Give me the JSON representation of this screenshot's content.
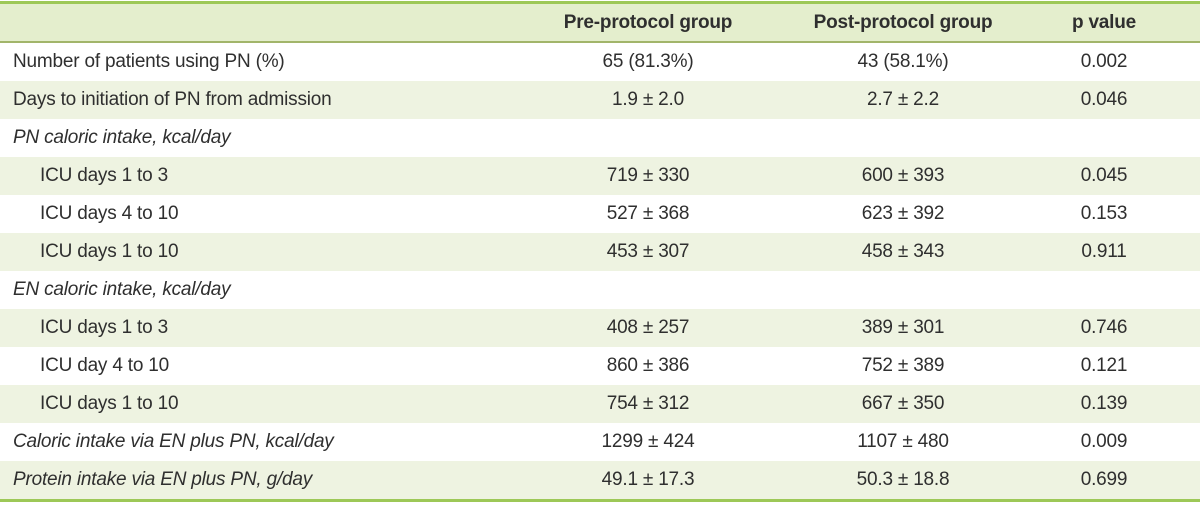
{
  "table": {
    "columns": {
      "row_label": "",
      "pre": "Pre-protocol group",
      "post": "Post-protocol group",
      "p": "p value"
    },
    "rows": [
      {
        "label": "Number of patients using PN (%)",
        "indent": 0,
        "italic": false,
        "pre": "65 (81.3%)",
        "post": "43 (58.1%)",
        "p": "0.002",
        "shaded": false
      },
      {
        "label": "Days to initiation of PN from admission",
        "indent": 0,
        "italic": false,
        "pre": "1.9 ± 2.0",
        "post": "2.7 ± 2.2",
        "p": "0.046",
        "shaded": true
      },
      {
        "label": "PN caloric intake, kcal/day",
        "indent": 0,
        "italic": true,
        "pre": "",
        "post": "",
        "p": "",
        "shaded": false
      },
      {
        "label": "ICU days 1 to 3",
        "indent": 1,
        "italic": false,
        "pre": "719 ± 330",
        "post": "600 ± 393",
        "p": "0.045",
        "shaded": true
      },
      {
        "label": "ICU days 4 to 10",
        "indent": 1,
        "italic": false,
        "pre": "527 ± 368",
        "post": "623 ± 392",
        "p": "0.153",
        "shaded": false
      },
      {
        "label": "ICU days 1 to 10",
        "indent": 1,
        "italic": false,
        "pre": "453 ± 307",
        "post": "458 ± 343",
        "p": "0.911",
        "shaded": true
      },
      {
        "label": "EN caloric intake, kcal/day",
        "indent": 0,
        "italic": true,
        "pre": "",
        "post": "",
        "p": "",
        "shaded": false
      },
      {
        "label": "ICU days 1 to 3",
        "indent": 1,
        "italic": false,
        "pre": "408 ± 257",
        "post": "389 ± 301",
        "p": "0.746",
        "shaded": true
      },
      {
        "label": "ICU day 4 to 10",
        "indent": 1,
        "italic": false,
        "pre": "860 ± 386",
        "post": "752 ± 389",
        "p": "0.121",
        "shaded": false
      },
      {
        "label": "ICU days 1 to 10",
        "indent": 1,
        "italic": false,
        "pre": "754 ± 312",
        "post": "667 ± 350",
        "p": "0.139",
        "shaded": true
      },
      {
        "label": "Caloric intake via EN plus PN, kcal/day",
        "indent": 0,
        "italic": true,
        "pre": "1299 ± 424",
        "post": "1107 ± 480",
        "p": "0.009",
        "shaded": false
      },
      {
        "label": "Protein intake via EN plus PN, g/day",
        "indent": 0,
        "italic": true,
        "pre": "49.1 ± 17.3",
        "post": "50.3 ± 18.8",
        "p": "0.699",
        "shaded": true
      }
    ],
    "colors": {
      "border_green": "#9dc857",
      "header_underline": "#a2b56a",
      "header_bg": "#e4eecd",
      "stripe_bg": "#eef3e1",
      "text_color": "#2f2f2f"
    }
  }
}
